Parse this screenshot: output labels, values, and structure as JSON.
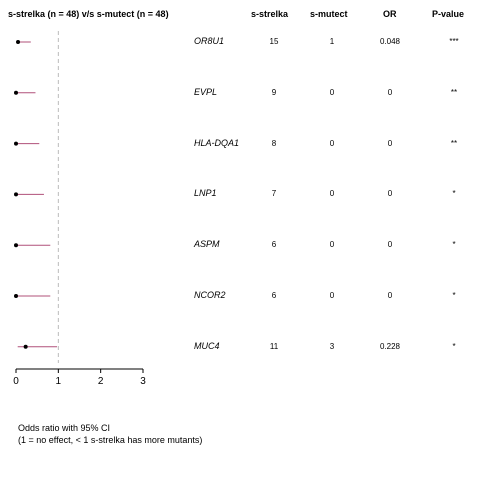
{
  "chart_data": {
    "type": "forest",
    "title": "s-strelka (n = 48) v/s s-mutect (n = 48)",
    "columns": [
      "s-strelka",
      "s-mutect",
      "OR",
      "P-value"
    ],
    "xlim": [
      0,
      3
    ],
    "x_ticks": [
      "0",
      "1",
      "2",
      "3"
    ],
    "reference_line": 1,
    "rows": [
      {
        "gene": "OR8U1",
        "strelka": "15",
        "mutect": "1",
        "or_label": "0.048",
        "pvalue": "***",
        "or": 0.048,
        "ci": [
          0.01,
          0.35
        ]
      },
      {
        "gene": "EVPL",
        "strelka": "9",
        "mutect": "0",
        "or_label": "0",
        "pvalue": "**",
        "or": 0,
        "ci": [
          0,
          0.46
        ]
      },
      {
        "gene": "HLA-DQA1",
        "strelka": "8",
        "mutect": "0",
        "or_label": "0",
        "pvalue": "**",
        "or": 0,
        "ci": [
          0,
          0.55
        ]
      },
      {
        "gene": "LNP1",
        "strelka": "7",
        "mutect": "0",
        "or_label": "0",
        "pvalue": "*",
        "or": 0,
        "ci": [
          0,
          0.66
        ]
      },
      {
        "gene": "ASPM",
        "strelka": "6",
        "mutect": "0",
        "or_label": "0",
        "pvalue": "*",
        "or": 0,
        "ci": [
          0,
          0.81
        ]
      },
      {
        "gene": "NCOR2",
        "strelka": "6",
        "mutect": "0",
        "or_label": "0",
        "pvalue": "*",
        "or": 0,
        "ci": [
          0,
          0.81
        ]
      },
      {
        "gene": "MUC4",
        "strelka": "11",
        "mutect": "3",
        "or_label": "0.228",
        "pvalue": "*",
        "or": 0.228,
        "ci": [
          0.04,
          0.97
        ]
      }
    ],
    "xlabel_lines": [
      "Odds ratio with 95% CI",
      "(1 = no effect, < 1 s-strelka has more mutants)"
    ]
  },
  "colors": {
    "ci_line": "#b0507a",
    "point": "#000000",
    "ref_line": "#bbbbbb"
  }
}
